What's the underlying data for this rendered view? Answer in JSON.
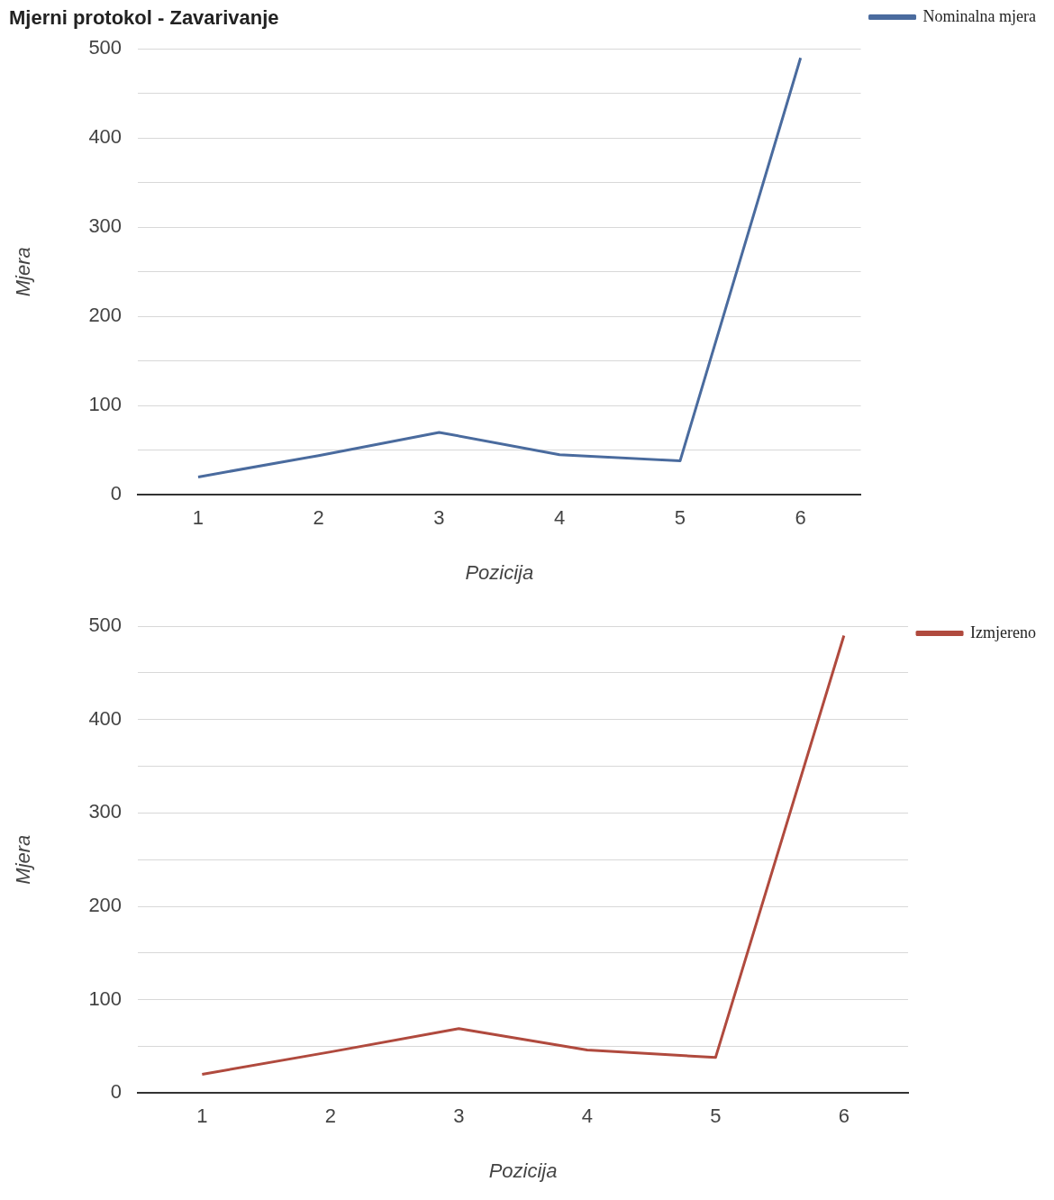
{
  "chart_data": [
    {
      "type": "line",
      "title": "Mjerni protokol - Zavarivanje",
      "xlabel": "Pozicija",
      "ylabel": "Mjera",
      "categories": [
        "1",
        "2",
        "3",
        "4",
        "5",
        "6"
      ],
      "series": [
        {
          "name": "Nominalna mjera",
          "color": "#4a6b9e",
          "values": [
            20,
            44,
            70,
            45,
            38,
            490
          ]
        }
      ],
      "ylim": [
        0,
        500
      ],
      "yticks": [
        0,
        {
          "value": 50,
          "label": null
        },
        100,
        {
          "value": 150,
          "label": null
        },
        200,
        {
          "value": 250,
          "label": null
        },
        300,
        {
          "value": 350,
          "label": null
        },
        400,
        {
          "value": 450,
          "label": null
        },
        500
      ],
      "grid": "y",
      "legend": "top right",
      "marker": "none",
      "line_style": "solid"
    },
    {
      "type": "line",
      "xlabel": "Pozicija",
      "ylabel": "Mjera",
      "categories": [
        "1",
        "2",
        "3",
        "4",
        "5",
        "6"
      ],
      "series": [
        {
          "name": "Izmjereno",
          "color": "#b04a3e",
          "values": [
            20,
            44,
            69,
            46,
            38,
            490
          ]
        }
      ],
      "ylim": [
        0,
        500
      ],
      "yticks": [
        0,
        {
          "value": 50,
          "label": null
        },
        100,
        {
          "value": 150,
          "label": null
        },
        200,
        {
          "value": 250,
          "label": null
        },
        300,
        {
          "value": 350,
          "label": null
        },
        400,
        {
          "value": 450,
          "label": null
        },
        500
      ],
      "grid": "y",
      "legend": "top right",
      "marker": "none",
      "line_style": "solid"
    }
  ]
}
